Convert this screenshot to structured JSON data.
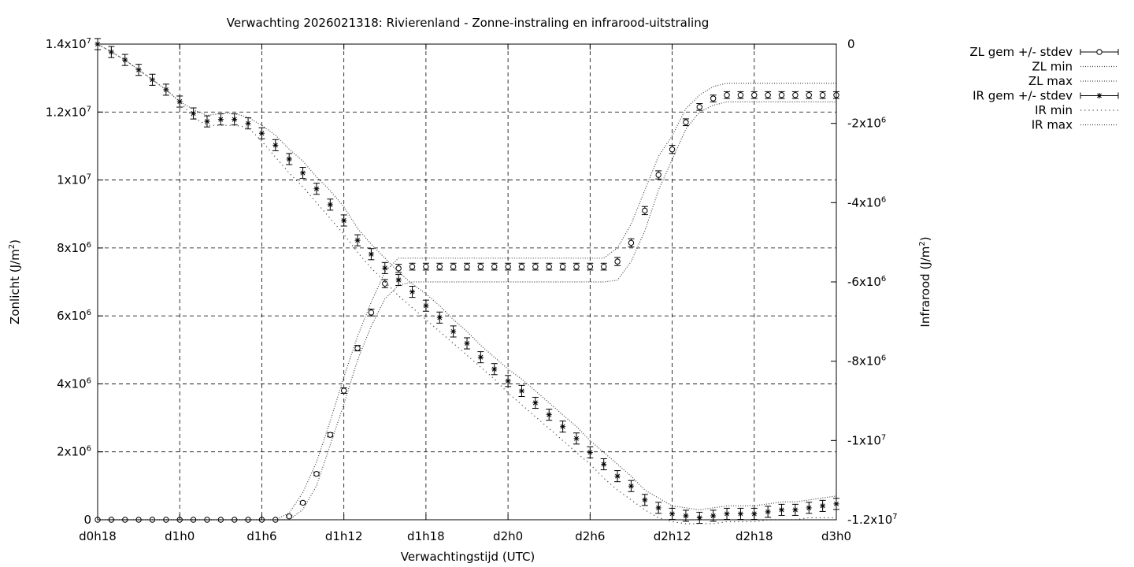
{
  "chart_data": {
    "type": "line",
    "title": "Verwachting 2026021318: Rivierenland - Zonne-instraling en infrarood-uitstraling",
    "xlabel": "Verwachtingstijd (UTC)",
    "ylabel": "Zonlicht (J/m",
    "ylabel_sup": "2",
    "ylabel_close": ")",
    "y2label": "Infrarood (J/m",
    "y2label_sup": "2",
    "y2label_close": ")",
    "xlim": [
      18,
      72
    ],
    "ylim": [
      0,
      14000000
    ],
    "y2lim": [
      -12000000,
      0
    ],
    "grid": true,
    "legend_position": "top-right outside",
    "x_ticks": [
      {
        "value": 18,
        "label": "d0h18"
      },
      {
        "value": 24,
        "label": "d1h0"
      },
      {
        "value": 30,
        "label": "d1h6"
      },
      {
        "value": 36,
        "label": "d1h12"
      },
      {
        "value": 42,
        "label": "d1h18"
      },
      {
        "value": 48,
        "label": "d2h0"
      },
      {
        "value": 54,
        "label": "d2h6"
      },
      {
        "value": 60,
        "label": "d2h12"
      },
      {
        "value": 66,
        "label": "d2h18"
      },
      {
        "value": 72,
        "label": "d3h0"
      }
    ],
    "y_ticks": [
      {
        "value": 0,
        "label": "0"
      },
      {
        "value": 2000000,
        "label": "2x10",
        "sup": "6"
      },
      {
        "value": 4000000,
        "label": "4x10",
        "sup": "6"
      },
      {
        "value": 6000000,
        "label": "6x10",
        "sup": "6"
      },
      {
        "value": 8000000,
        "label": "8x10",
        "sup": "6"
      },
      {
        "value": 10000000,
        "label": "1x10",
        "sup": "7"
      },
      {
        "value": 12000000,
        "label": "1.2x10",
        "sup": "7"
      },
      {
        "value": 14000000,
        "label": "1.4x10",
        "sup": "7"
      }
    ],
    "y2_ticks": [
      {
        "value": 0,
        "label": "0"
      },
      {
        "value": -2000000,
        "label": "-2x10",
        "sup": "6"
      },
      {
        "value": -4000000,
        "label": "-4x10",
        "sup": "6"
      },
      {
        "value": -6000000,
        "label": "-6x10",
        "sup": "6"
      },
      {
        "value": -8000000,
        "label": "-8x10",
        "sup": "6"
      },
      {
        "value": -10000000,
        "label": "-1x10",
        "sup": "7"
      },
      {
        "value": -12000000,
        "label": "-1.2x10",
        "sup": "7"
      }
    ],
    "x": [
      18,
      19,
      20,
      21,
      22,
      23,
      24,
      25,
      26,
      27,
      28,
      29,
      30,
      31,
      32,
      33,
      34,
      35,
      36,
      37,
      38,
      39,
      40,
      41,
      42,
      43,
      44,
      45,
      46,
      47,
      48,
      49,
      50,
      51,
      52,
      53,
      54,
      55,
      56,
      57,
      58,
      59,
      60,
      61,
      62,
      63,
      64,
      65,
      66,
      67,
      68,
      69,
      70,
      71,
      72
    ],
    "series": [
      {
        "name": "ZL gem +/- stdev",
        "axis": "y",
        "marker": "circle",
        "values": [
          0,
          0,
          0,
          0,
          0,
          0,
          0,
          0,
          0,
          0,
          0,
          0,
          0,
          0,
          100000,
          500000,
          1350000,
          2500000,
          3800000,
          5050000,
          6100000,
          6950000,
          7400000,
          7450000,
          7450000,
          7450000,
          7450000,
          7450000,
          7450000,
          7450000,
          7450000,
          7450000,
          7450000,
          7450000,
          7450000,
          7450000,
          7450000,
          7450000,
          7600000,
          8150000,
          9100000,
          10150000,
          10900000,
          11700000,
          12150000,
          12400000,
          12500000,
          12500000,
          12500000,
          12500000,
          12500000,
          12500000,
          12500000,
          12500000,
          12500000
        ],
        "stdev": [
          0,
          0,
          0,
          0,
          0,
          0,
          0,
          0,
          0,
          0,
          0,
          0,
          0,
          0,
          30000,
          40000,
          50000,
          60000,
          80000,
          80000,
          100000,
          120000,
          120000,
          100000,
          100000,
          100000,
          100000,
          100000,
          100000,
          100000,
          100000,
          100000,
          100000,
          100000,
          100000,
          100000,
          100000,
          100000,
          120000,
          120000,
          120000,
          120000,
          120000,
          100000,
          100000,
          100000,
          100000,
          100000,
          100000,
          100000,
          100000,
          100000,
          100000,
          100000,
          100000
        ]
      },
      {
        "name": "ZL min",
        "axis": "y",
        "style": "dotted",
        "values": [
          0,
          0,
          0,
          0,
          0,
          0,
          0,
          0,
          0,
          0,
          0,
          0,
          0,
          0,
          0,
          300000,
          1000000,
          2200000,
          3400000,
          4700000,
          5700000,
          6500000,
          6900000,
          7000000,
          7000000,
          7000000,
          7000000,
          7000000,
          7000000,
          7000000,
          7000000,
          7000000,
          7000000,
          7000000,
          7000000,
          7000000,
          7000000,
          7000000,
          7050000,
          7600000,
          8500000,
          9700000,
          10600000,
          11500000,
          12000000,
          12200000,
          12300000,
          12300000,
          12300000,
          12300000,
          12300000,
          12300000,
          12300000,
          12300000,
          12300000
        ]
      },
      {
        "name": "ZL max",
        "axis": "y",
        "style": "dotted",
        "values": [
          0,
          0,
          0,
          0,
          0,
          0,
          0,
          0,
          0,
          0,
          0,
          0,
          0,
          0,
          200000,
          800000,
          1700000,
          2900000,
          4200000,
          5400000,
          6400000,
          7300000,
          7700000,
          7700000,
          7700000,
          7700000,
          7700000,
          7700000,
          7700000,
          7700000,
          7700000,
          7700000,
          7700000,
          7700000,
          7700000,
          7700000,
          7700000,
          7700000,
          8000000,
          8700000,
          9700000,
          10700000,
          11300000,
          12100000,
          12500000,
          12750000,
          12850000,
          12850000,
          12850000,
          12850000,
          12850000,
          12850000,
          12850000,
          12850000,
          12850000
        ]
      },
      {
        "name": "IR gem +/- stdev",
        "axis": "y2",
        "marker": "star",
        "values": [
          0,
          -200000,
          -400000,
          -650000,
          -900000,
          -1150000,
          -1450000,
          -1750000,
          -1950000,
          -1900000,
          -1900000,
          -2000000,
          -2250000,
          -2550000,
          -2900000,
          -3250000,
          -3650000,
          -4050000,
          -4450000,
          -4950000,
          -5300000,
          -5650000,
          -5950000,
          -6250000,
          -6600000,
          -6900000,
          -7250000,
          -7550000,
          -7900000,
          -8200000,
          -8500000,
          -8750000,
          -9050000,
          -9350000,
          -9650000,
          -9950000,
          -10300000,
          -10600000,
          -10900000,
          -11150000,
          -11500000,
          -11700000,
          -11850000,
          -11900000,
          -11950000,
          -11900000,
          -11850000,
          -11850000,
          -11850000,
          -11800000,
          -11750000,
          -11750000,
          -11700000,
          -11650000,
          -11600000
        ]
      },
      {
        "name": "IR min",
        "axis": "y2",
        "style": "sparse-dotted",
        "values": [
          0,
          -200000,
          -400000,
          -650000,
          -900000,
          -1150000,
          -1450000,
          -1850000,
          -2050000,
          -2050000,
          -2050000,
          -2100000,
          -2450000,
          -2850000,
          -3250000,
          -3600000,
          -4000000,
          -4400000,
          -4800000,
          -5250000,
          -5650000,
          -6000000,
          -6350000,
          -6650000,
          -6950000,
          -7250000,
          -7550000,
          -7850000,
          -8150000,
          -8450000,
          -8800000,
          -9100000,
          -9400000,
          -9700000,
          -10000000,
          -10300000,
          -10600000,
          -10950000,
          -11250000,
          -11500000,
          -11750000,
          -11950000,
          -12050000,
          -12100000,
          -12100000,
          -12100000,
          -12050000,
          -12050000,
          -12050000,
          -12000000,
          -12000000,
          -12000000,
          -11950000,
          -11950000,
          -11950000
        ]
      },
      {
        "name": "IR max",
        "axis": "y2",
        "style": "dotted",
        "values": [
          0,
          -200000,
          -400000,
          -650000,
          -900000,
          -1150000,
          -1450000,
          -1650000,
          -1800000,
          -1750000,
          -1750000,
          -1850000,
          -2050000,
          -2300000,
          -2650000,
          -2950000,
          -3350000,
          -3700000,
          -4100000,
          -4650000,
          -5050000,
          -5400000,
          -5750000,
          -6050000,
          -6300000,
          -6600000,
          -6950000,
          -7250000,
          -7600000,
          -7900000,
          -8200000,
          -8450000,
          -8750000,
          -9050000,
          -9350000,
          -9650000,
          -10000000,
          -10300000,
          -10600000,
          -10900000,
          -11250000,
          -11450000,
          -11650000,
          -11700000,
          -11750000,
          -11700000,
          -11650000,
          -11650000,
          -11650000,
          -11600000,
          -11550000,
          -11550000,
          -11500000,
          -11450000,
          -11400000
        ]
      }
    ]
  }
}
